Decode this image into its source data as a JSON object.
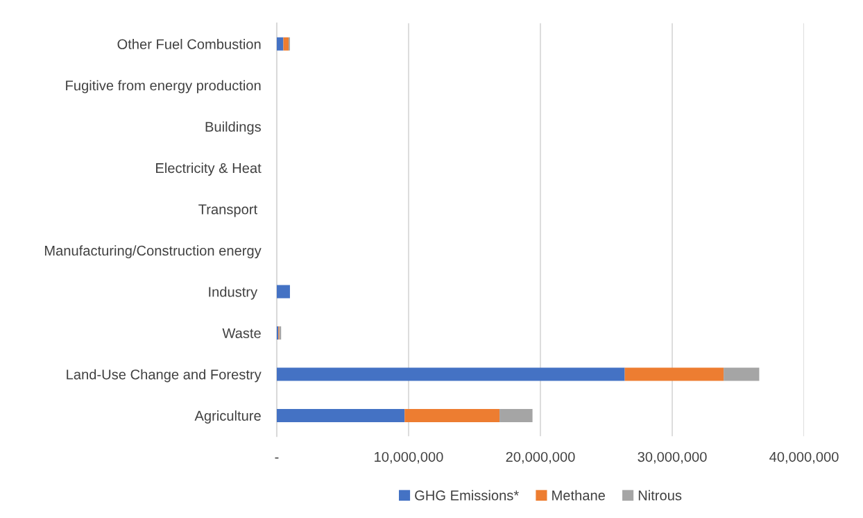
{
  "chart_data": {
    "type": "bar",
    "orientation": "horizontal",
    "stacked": true,
    "categories": [
      "Other Fuel Combustion",
      "Fugitive from energy production",
      "Buildings",
      "Electricity & Heat",
      "Transport ",
      "Manufacturing/Construction energy",
      "Industry ",
      "Waste",
      "Land-Use Change and Forestry",
      "Agriculture"
    ],
    "series": [
      {
        "name": "GHG Emissions*",
        "color": "#4472c4",
        "values": [
          500000,
          null,
          null,
          null,
          null,
          null,
          1000000,
          120000,
          26400000,
          9700000
        ]
      },
      {
        "name": "Methane",
        "color": "#ed7d31",
        "values": [
          400000,
          null,
          null,
          null,
          null,
          null,
          null,
          70000,
          7500000,
          7200000
        ]
      },
      {
        "name": "Nitrous",
        "color": "#a5a5a5",
        "values": [
          100000,
          null,
          null,
          null,
          null,
          null,
          null,
          140000,
          2700000,
          2500000
        ]
      }
    ],
    "xlim": [
      0,
      40000000
    ],
    "xticks": [
      {
        "value": 0,
        "label": "-"
      },
      {
        "value": 10000000,
        "label": "10,000,000"
      },
      {
        "value": 20000000,
        "label": "20,000,000"
      },
      {
        "value": 30000000,
        "label": "30,000,000"
      },
      {
        "value": 40000000,
        "label": "40,000,000"
      }
    ],
    "grid": "x",
    "legend": "bottom"
  }
}
